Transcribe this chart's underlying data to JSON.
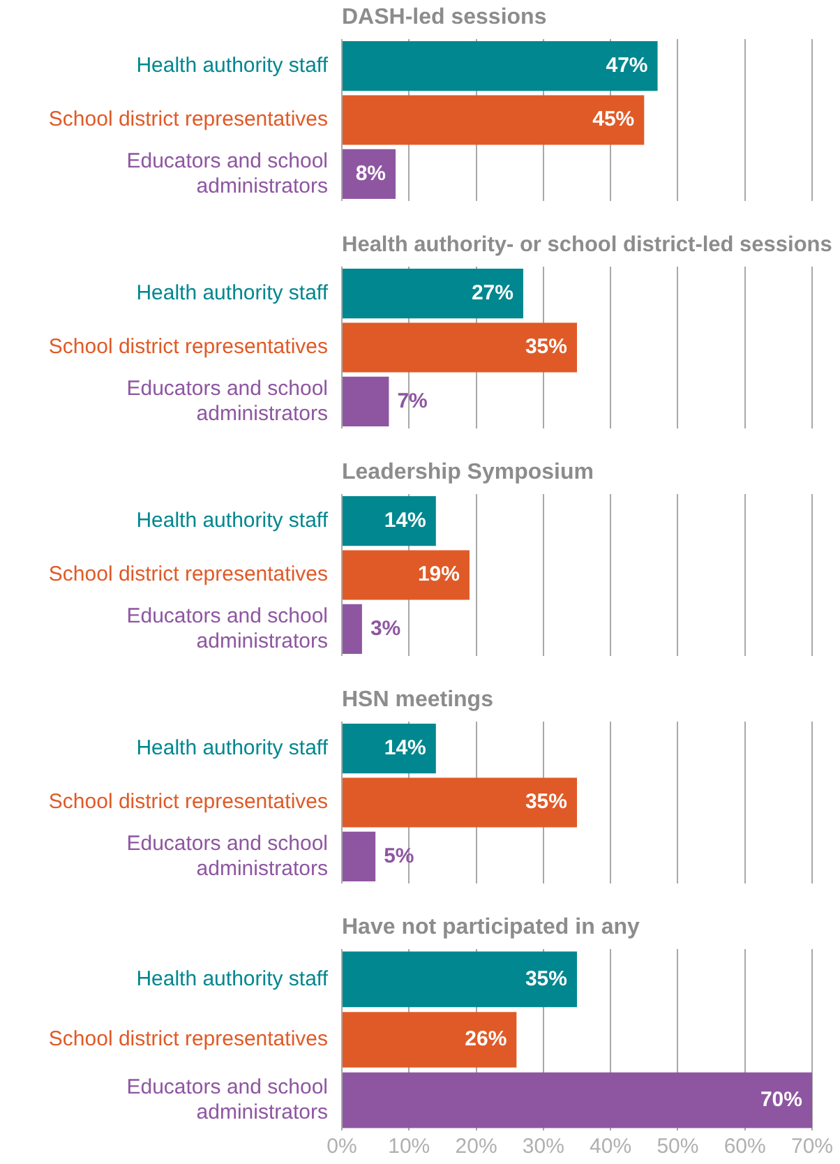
{
  "chart_data": [
    {
      "type": "bar",
      "orientation": "horizontal",
      "title": "DASH-led sessions",
      "categories": [
        "Health authority staff",
        "School district representatives",
        "Educators and school administrators"
      ],
      "values": [
        47,
        45,
        8
      ],
      "colors": [
        "#00878f",
        "#e05a27",
        "#8e56a1"
      ],
      "value_labels": [
        "47%",
        "45%",
        "8%"
      ],
      "xlim": [
        0,
        70
      ],
      "xticks": [
        {
          "value": 0,
          "label": null
        },
        {
          "value": 10,
          "label": null
        },
        {
          "value": 20,
          "label": null
        },
        {
          "value": 30,
          "label": null
        },
        {
          "value": 40,
          "label": null
        },
        {
          "value": 50,
          "label": null
        },
        {
          "value": 60,
          "label": null
        },
        {
          "value": 70,
          "label": null
        }
      ],
      "grid": "x",
      "legend": false,
      "tick_labels": "y"
    },
    {
      "type": "bar",
      "orientation": "horizontal",
      "title": "Health authority- or school district-led sessions",
      "categories": [
        "Health authority staff",
        "School district representatives",
        "Educators and school administrators"
      ],
      "values": [
        27,
        35,
        7
      ],
      "colors": [
        "#00878f",
        "#e05a27",
        "#8e56a1"
      ],
      "value_labels": [
        "27%",
        "35%",
        "7%"
      ],
      "xlim": [
        0,
        70
      ],
      "xticks": [
        {
          "value": 0,
          "label": null
        },
        {
          "value": 10,
          "label": null
        },
        {
          "value": 20,
          "label": null
        },
        {
          "value": 30,
          "label": null
        },
        {
          "value": 40,
          "label": null
        },
        {
          "value": 50,
          "label": null
        },
        {
          "value": 60,
          "label": null
        },
        {
          "value": 70,
          "label": null
        }
      ],
      "grid": "x",
      "legend": false,
      "tick_labels": "y"
    },
    {
      "type": "bar",
      "orientation": "horizontal",
      "title": "Leadership Symposium",
      "categories": [
        "Health authority staff",
        "School district representatives",
        "Educators and school administrators"
      ],
      "values": [
        14,
        19,
        3
      ],
      "colors": [
        "#00878f",
        "#e05a27",
        "#8e56a1"
      ],
      "value_labels": [
        "14%",
        "19%",
        "3%"
      ],
      "xlim": [
        0,
        70
      ],
      "xticks": [
        {
          "value": 0,
          "label": null
        },
        {
          "value": 10,
          "label": null
        },
        {
          "value": 20,
          "label": null
        },
        {
          "value": 30,
          "label": null
        },
        {
          "value": 40,
          "label": null
        },
        {
          "value": 50,
          "label": null
        },
        {
          "value": 60,
          "label": null
        },
        {
          "value": 70,
          "label": null
        }
      ],
      "grid": "x",
      "legend": false,
      "tick_labels": "y"
    },
    {
      "type": "bar",
      "orientation": "horizontal",
      "title": "HSN meetings",
      "categories": [
        "Health authority staff",
        "School district representatives",
        "Educators and school administrators"
      ],
      "values": [
        14,
        35,
        5
      ],
      "colors": [
        "#00878f",
        "#e05a27",
        "#8e56a1"
      ],
      "value_labels": [
        "14%",
        "35%",
        "5%"
      ],
      "xlim": [
        0,
        70
      ],
      "xticks": [
        {
          "value": 0,
          "label": null
        },
        {
          "value": 10,
          "label": null
        },
        {
          "value": 20,
          "label": null
        },
        {
          "value": 30,
          "label": null
        },
        {
          "value": 40,
          "label": null
        },
        {
          "value": 50,
          "label": null
        },
        {
          "value": 60,
          "label": null
        },
        {
          "value": 70,
          "label": null
        }
      ],
      "grid": "x",
      "legend": false,
      "tick_labels": "y"
    },
    {
      "type": "bar",
      "orientation": "horizontal",
      "title": "Have not participated in any",
      "categories": [
        "Health authority staff",
        "School district representatives",
        "Educators and school administrators"
      ],
      "values": [
        35,
        26,
        70
      ],
      "colors": [
        "#00878f",
        "#e05a27",
        "#8e56a1"
      ],
      "value_labels": [
        "35%",
        "26%",
        "70%"
      ],
      "xlim": [
        0,
        70
      ],
      "xticks": [
        {
          "value": 0,
          "label": "0%"
        },
        {
          "value": 10,
          "label": "10%"
        },
        {
          "value": 20,
          "label": "20%"
        },
        {
          "value": 30,
          "label": "30%"
        },
        {
          "value": 40,
          "label": "40%"
        },
        {
          "value": 50,
          "label": "50%"
        },
        {
          "value": 60,
          "label": "60%"
        },
        {
          "value": 70,
          "label": "70%"
        }
      ],
      "grid": "x",
      "legend": false
    }
  ]
}
